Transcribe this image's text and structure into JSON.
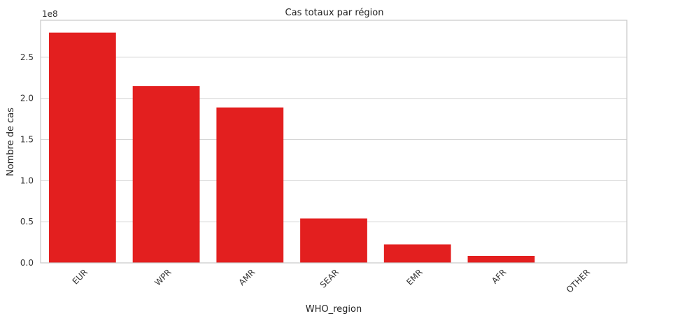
{
  "chart_data": {
    "type": "bar",
    "title": "Cas totaux par région",
    "xlabel": "WHO_region",
    "ylabel": "Nombre de cas",
    "y_offset_label": "1e8",
    "categories": [
      "EUR",
      "WPR",
      "AMR",
      "SEAR",
      "EMR",
      "AFR",
      "OTHER"
    ],
    "values": [
      280000000,
      215000000,
      189000000,
      54000000,
      22500000,
      8500000,
      0
    ],
    "ylim": [
      0,
      295000000
    ],
    "yticks": [
      0,
      50000000,
      100000000,
      150000000,
      200000000,
      250000000
    ],
    "ytick_labels": [
      "0.0",
      "0.5",
      "1.0",
      "1.5",
      "2.0",
      "2.5"
    ],
    "grid": true,
    "bar_color": "#e31f1f",
    "grid_color": "#d6d6d6",
    "frame_color": "#c8c8c8"
  }
}
